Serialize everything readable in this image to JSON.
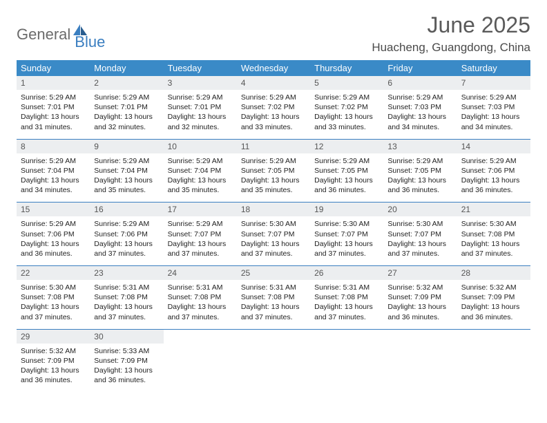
{
  "brand": {
    "part1": "General",
    "part2": "Blue"
  },
  "title": "June 2025",
  "location": "Huacheng, Guangdong, China",
  "colors": {
    "header_bg": "#3a8ac7",
    "header_text": "#ffffff",
    "daynum_bg": "#eceef0",
    "divider": "#3a7ec0",
    "text": "#232323",
    "month_title": "#5a5a5a",
    "logo_gray": "#6b6b6b",
    "logo_blue": "#3a7ec0"
  },
  "day_headers": [
    "Sunday",
    "Monday",
    "Tuesday",
    "Wednesday",
    "Thursday",
    "Friday",
    "Saturday"
  ],
  "weeks": [
    [
      {
        "n": "1",
        "sunrise": "5:29 AM",
        "sunset": "7:01 PM",
        "daylight": "13 hours and 31 minutes."
      },
      {
        "n": "2",
        "sunrise": "5:29 AM",
        "sunset": "7:01 PM",
        "daylight": "13 hours and 32 minutes."
      },
      {
        "n": "3",
        "sunrise": "5:29 AM",
        "sunset": "7:01 PM",
        "daylight": "13 hours and 32 minutes."
      },
      {
        "n": "4",
        "sunrise": "5:29 AM",
        "sunset": "7:02 PM",
        "daylight": "13 hours and 33 minutes."
      },
      {
        "n": "5",
        "sunrise": "5:29 AM",
        "sunset": "7:02 PM",
        "daylight": "13 hours and 33 minutes."
      },
      {
        "n": "6",
        "sunrise": "5:29 AM",
        "sunset": "7:03 PM",
        "daylight": "13 hours and 34 minutes."
      },
      {
        "n": "7",
        "sunrise": "5:29 AM",
        "sunset": "7:03 PM",
        "daylight": "13 hours and 34 minutes."
      }
    ],
    [
      {
        "n": "8",
        "sunrise": "5:29 AM",
        "sunset": "7:04 PM",
        "daylight": "13 hours and 34 minutes."
      },
      {
        "n": "9",
        "sunrise": "5:29 AM",
        "sunset": "7:04 PM",
        "daylight": "13 hours and 35 minutes."
      },
      {
        "n": "10",
        "sunrise": "5:29 AM",
        "sunset": "7:04 PM",
        "daylight": "13 hours and 35 minutes."
      },
      {
        "n": "11",
        "sunrise": "5:29 AM",
        "sunset": "7:05 PM",
        "daylight": "13 hours and 35 minutes."
      },
      {
        "n": "12",
        "sunrise": "5:29 AM",
        "sunset": "7:05 PM",
        "daylight": "13 hours and 36 minutes."
      },
      {
        "n": "13",
        "sunrise": "5:29 AM",
        "sunset": "7:05 PM",
        "daylight": "13 hours and 36 minutes."
      },
      {
        "n": "14",
        "sunrise": "5:29 AM",
        "sunset": "7:06 PM",
        "daylight": "13 hours and 36 minutes."
      }
    ],
    [
      {
        "n": "15",
        "sunrise": "5:29 AM",
        "sunset": "7:06 PM",
        "daylight": "13 hours and 36 minutes."
      },
      {
        "n": "16",
        "sunrise": "5:29 AM",
        "sunset": "7:06 PM",
        "daylight": "13 hours and 37 minutes."
      },
      {
        "n": "17",
        "sunrise": "5:29 AM",
        "sunset": "7:07 PM",
        "daylight": "13 hours and 37 minutes."
      },
      {
        "n": "18",
        "sunrise": "5:30 AM",
        "sunset": "7:07 PM",
        "daylight": "13 hours and 37 minutes."
      },
      {
        "n": "19",
        "sunrise": "5:30 AM",
        "sunset": "7:07 PM",
        "daylight": "13 hours and 37 minutes."
      },
      {
        "n": "20",
        "sunrise": "5:30 AM",
        "sunset": "7:07 PM",
        "daylight": "13 hours and 37 minutes."
      },
      {
        "n": "21",
        "sunrise": "5:30 AM",
        "sunset": "7:08 PM",
        "daylight": "13 hours and 37 minutes."
      }
    ],
    [
      {
        "n": "22",
        "sunrise": "5:30 AM",
        "sunset": "7:08 PM",
        "daylight": "13 hours and 37 minutes."
      },
      {
        "n": "23",
        "sunrise": "5:31 AM",
        "sunset": "7:08 PM",
        "daylight": "13 hours and 37 minutes."
      },
      {
        "n": "24",
        "sunrise": "5:31 AM",
        "sunset": "7:08 PM",
        "daylight": "13 hours and 37 minutes."
      },
      {
        "n": "25",
        "sunrise": "5:31 AM",
        "sunset": "7:08 PM",
        "daylight": "13 hours and 37 minutes."
      },
      {
        "n": "26",
        "sunrise": "5:31 AM",
        "sunset": "7:08 PM",
        "daylight": "13 hours and 37 minutes."
      },
      {
        "n": "27",
        "sunrise": "5:32 AM",
        "sunset": "7:09 PM",
        "daylight": "13 hours and 36 minutes."
      },
      {
        "n": "28",
        "sunrise": "5:32 AM",
        "sunset": "7:09 PM",
        "daylight": "13 hours and 36 minutes."
      }
    ],
    [
      {
        "n": "29",
        "sunrise": "5:32 AM",
        "sunset": "7:09 PM",
        "daylight": "13 hours and 36 minutes."
      },
      {
        "n": "30",
        "sunrise": "5:33 AM",
        "sunset": "7:09 PM",
        "daylight": "13 hours and 36 minutes."
      },
      null,
      null,
      null,
      null,
      null
    ]
  ],
  "labels": {
    "sunrise": "Sunrise:",
    "sunset": "Sunset:",
    "daylight": "Daylight:"
  }
}
